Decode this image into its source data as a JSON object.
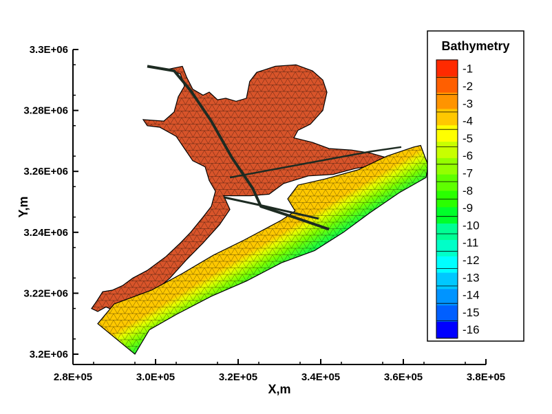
{
  "chart_data": {
    "type": "heatmap",
    "title": "",
    "xlabel": "X,m",
    "ylabel": "Y,m",
    "xlim": [
      280000,
      380000
    ],
    "ylim": [
      3200000,
      3300000
    ],
    "x_ticks": [
      "2.8E+05",
      "3.0E+05",
      "3.2E+05",
      "3.4E+05",
      "3.6E+05",
      "3.8E+05"
    ],
    "y_ticks": [
      "3.2E+06",
      "3.22E+06",
      "3.24E+06",
      "3.26E+06",
      "3.28E+06",
      "3.3E+06"
    ],
    "x_tick_values": [
      280000,
      300000,
      320000,
      340000,
      360000,
      380000
    ],
    "y_tick_values": [
      3200000,
      3220000,
      3240000,
      3260000,
      3280000,
      3300000
    ],
    "legend": {
      "title": "Bathymetry",
      "position": "right",
      "levels": [
        "-1",
        "-2",
        "-3",
        "-4",
        "-5",
        "-6",
        "-7",
        "-8",
        "-9",
        "-10",
        "-11",
        "-12",
        "-13",
        "-14",
        "-15",
        "-16"
      ],
      "colors": [
        "#ff2a00",
        "#ff5f00",
        "#ff9400",
        "#ffc800",
        "#ffff00",
        "#c8ff00",
        "#94ff00",
        "#5fff00",
        "#2aff00",
        "#00ff2a",
        "#00ff94",
        "#00ffc8",
        "#00ffff",
        "#00c8ff",
        "#0094ff",
        "#005fff",
        "#0000ff"
      ]
    },
    "grid": false,
    "regions": [
      {
        "name": "bay",
        "depth_range": [
          -1,
          -2
        ],
        "fill": "#d8542a",
        "outline": [
          [
            298500,
            3213000
          ],
          [
            296000,
            3211500
          ],
          [
            293500,
            3213500
          ],
          [
            290500,
            3214000
          ],
          [
            288000,
            3215500
          ],
          [
            286000,
            3214000
          ],
          [
            284500,
            3215000
          ],
          [
            285800,
            3217500
          ],
          [
            287200,
            3220500
          ],
          [
            289500,
            3221000
          ],
          [
            292000,
            3222500
          ],
          [
            294500,
            3225000
          ],
          [
            298000,
            3227500
          ],
          [
            302500,
            3232000
          ],
          [
            306000,
            3236500
          ],
          [
            308500,
            3240000
          ],
          [
            311500,
            3245000
          ],
          [
            313500,
            3248500
          ],
          [
            314500,
            3253500
          ],
          [
            313000,
            3257000
          ],
          [
            312000,
            3261500
          ],
          [
            309000,
            3263500
          ],
          [
            307000,
            3267500
          ],
          [
            305000,
            3271500
          ],
          [
            301000,
            3274500
          ],
          [
            298000,
            3275000
          ],
          [
            297000,
            3277000
          ],
          [
            302000,
            3276500
          ],
          [
            304500,
            3279500
          ],
          [
            305500,
            3284500
          ],
          [
            307000,
            3288000
          ],
          [
            306000,
            3292000
          ],
          [
            303000,
            3293500
          ],
          [
            306500,
            3294500
          ],
          [
            307500,
            3291000
          ],
          [
            309000,
            3287000
          ],
          [
            311500,
            3285000
          ],
          [
            313000,
            3286000
          ],
          [
            315000,
            3283500
          ],
          [
            317000,
            3284000
          ],
          [
            319500,
            3283000
          ],
          [
            322000,
            3284000
          ],
          [
            322800,
            3289500
          ],
          [
            324500,
            3292500
          ],
          [
            329000,
            3294500
          ],
          [
            334000,
            3295000
          ],
          [
            338000,
            3293000
          ],
          [
            340500,
            3290000
          ],
          [
            341500,
            3286000
          ],
          [
            340500,
            3280000
          ],
          [
            337500,
            3275500
          ],
          [
            334500,
            3273500
          ],
          [
            333500,
            3271000
          ],
          [
            338000,
            3269500
          ],
          [
            342000,
            3267500
          ],
          [
            347500,
            3267000
          ],
          [
            352000,
            3266000
          ],
          [
            356000,
            3264500
          ],
          [
            353000,
            3262000
          ],
          [
            348500,
            3261000
          ],
          [
            343000,
            3259000
          ],
          [
            337000,
            3258500
          ],
          [
            331000,
            3256000
          ],
          [
            327500,
            3252500
          ],
          [
            323000,
            3252000
          ],
          [
            316500,
            3252000
          ],
          [
            318000,
            3247500
          ],
          [
            315500,
            3242500
          ],
          [
            311500,
            3236500
          ],
          [
            307500,
            3231000
          ],
          [
            303500,
            3225000
          ],
          [
            300000,
            3221000
          ],
          [
            298800,
            3217500
          ]
        ]
      },
      {
        "name": "gulf",
        "depth_range": [
          -1,
          -16
        ],
        "fill": "#55e880",
        "outline": [
          [
            290000,
            3216500
          ],
          [
            299000,
            3221000
          ],
          [
            306500,
            3226500
          ],
          [
            314000,
            3232500
          ],
          [
            321500,
            3237500
          ],
          [
            330500,
            3244000
          ],
          [
            333800,
            3247000
          ],
          [
            332000,
            3251000
          ],
          [
            334500,
            3255500
          ],
          [
            341000,
            3257500
          ],
          [
            349000,
            3260500
          ],
          [
            356000,
            3265000
          ],
          [
            362500,
            3268000
          ],
          [
            364200,
            3268500
          ],
          [
            366000,
            3262000
          ],
          [
            365500,
            3258000
          ],
          [
            359000,
            3253000
          ],
          [
            352000,
            3246500
          ],
          [
            345500,
            3240000
          ],
          [
            338500,
            3234000
          ],
          [
            330500,
            3230000
          ],
          [
            322000,
            3224000
          ],
          [
            313500,
            3219000
          ],
          [
            305000,
            3213000
          ],
          [
            298500,
            3208000
          ],
          [
            295000,
            3200000
          ],
          [
            286000,
            3210000
          ]
        ]
      }
    ]
  }
}
